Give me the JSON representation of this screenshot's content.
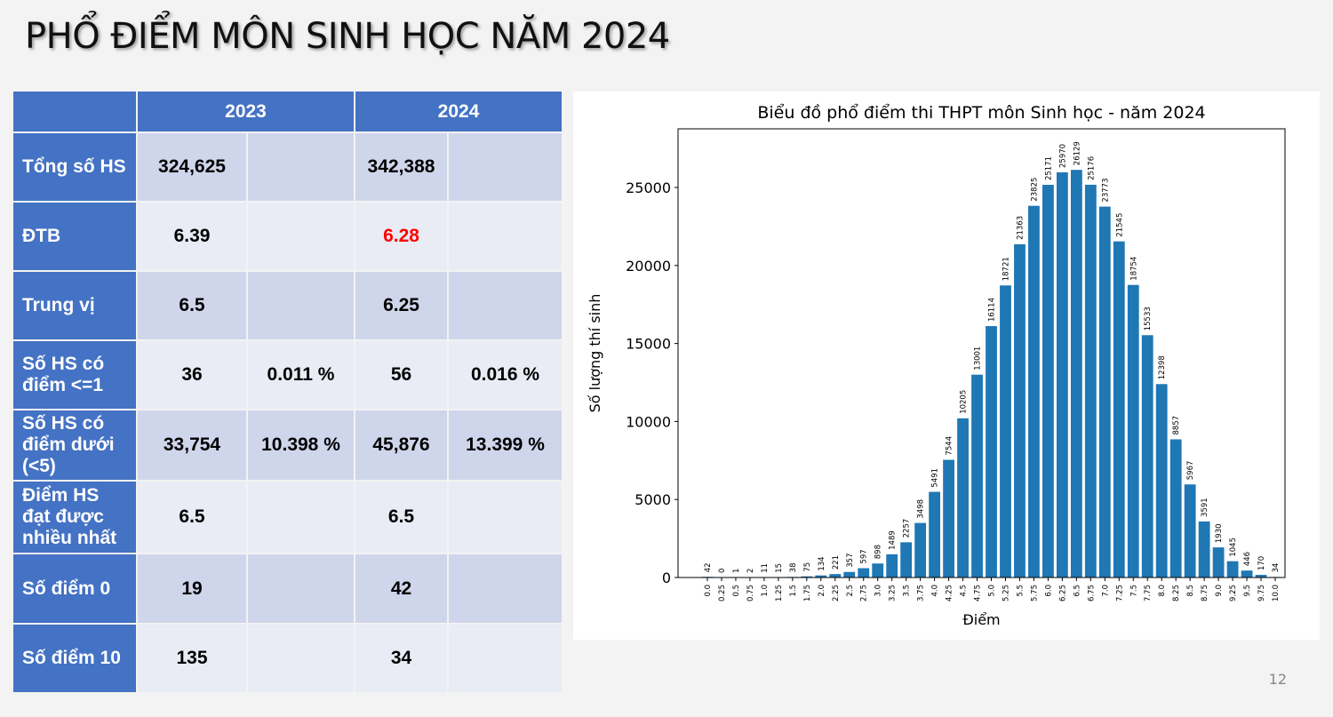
{
  "title": "PHỔ ĐIỂM MÔN SINH HỌC NĂM 2024",
  "page_number": "12",
  "table": {
    "headers": [
      "",
      "2023",
      "2024"
    ],
    "rows": [
      {
        "label": "Tổng số HS",
        "v2023": "324,625",
        "p2023": "",
        "v2024": "342,388",
        "p2024": ""
      },
      {
        "label": "ĐTB",
        "v2023": "6.39",
        "p2023": "",
        "v2024": "6.28",
        "p2024": ""
      },
      {
        "label": "Trung vị",
        "v2023": "6.5",
        "p2023": "",
        "v2024": "6.25",
        "p2024": ""
      },
      {
        "label": "Số HS có điểm <=1",
        "v2023": "36",
        "p2023": "0.011 %",
        "v2024": "56",
        "p2024": "0.016 %"
      },
      {
        "label": "Số HS có điểm dưới (<5)",
        "v2023": "33,754",
        "p2023": "10.398 %",
        "v2024": "45,876",
        "p2024": "13.399 %"
      },
      {
        "label": "Điểm HS đạt được nhiều nhất",
        "v2023": "6.5",
        "p2023": "",
        "v2024": "6.5",
        "p2024": ""
      },
      {
        "label": "Số điểm 0",
        "v2023": "19",
        "p2023": "",
        "v2024": "42",
        "p2024": ""
      },
      {
        "label": "Số điểm 10",
        "v2023": "135",
        "p2023": "",
        "v2024": "34",
        "p2024": ""
      }
    ],
    "highlight_color": "#ff0000"
  },
  "chart_data": {
    "type": "bar",
    "title": "Biểu đồ phổ điểm thi THPT môn Sinh học - năm 2024",
    "xlabel": "Điểm",
    "ylabel": "Số lượng thí sinh",
    "categories": [
      "0.0",
      "0.25",
      "0.5",
      "0.75",
      "1.0",
      "1.25",
      "1.5",
      "1.75",
      "2.0",
      "2.25",
      "2.5",
      "2.75",
      "3.0",
      "3.25",
      "3.5",
      "3.75",
      "4.0",
      "4.25",
      "4.5",
      "4.75",
      "5.0",
      "5.25",
      "5.5",
      "5.75",
      "6.0",
      "6.25",
      "6.5",
      "6.75",
      "7.0",
      "7.25",
      "7.5",
      "7.75",
      "8.0",
      "8.25",
      "8.5",
      "8.75",
      "9.0",
      "9.25",
      "9.5",
      "9.75",
      "10.0"
    ],
    "values": [
      42,
      0,
      1,
      2,
      11,
      15,
      38,
      75,
      134,
      221,
      357,
      597,
      898,
      1489,
      2257,
      3498,
      5491,
      7544,
      10205,
      13001,
      16114,
      18721,
      21363,
      23825,
      25171,
      25970,
      26129,
      25176,
      23773,
      21545,
      18754,
      15533,
      12398,
      8857,
      5967,
      3591,
      1930,
      1045,
      446,
      170,
      34
    ],
    "yticks": [
      0,
      5000,
      10000,
      15000,
      20000,
      25000
    ],
    "ylim": [
      0,
      28760
    ],
    "bar_color": "#1f77b4",
    "grid": false
  }
}
